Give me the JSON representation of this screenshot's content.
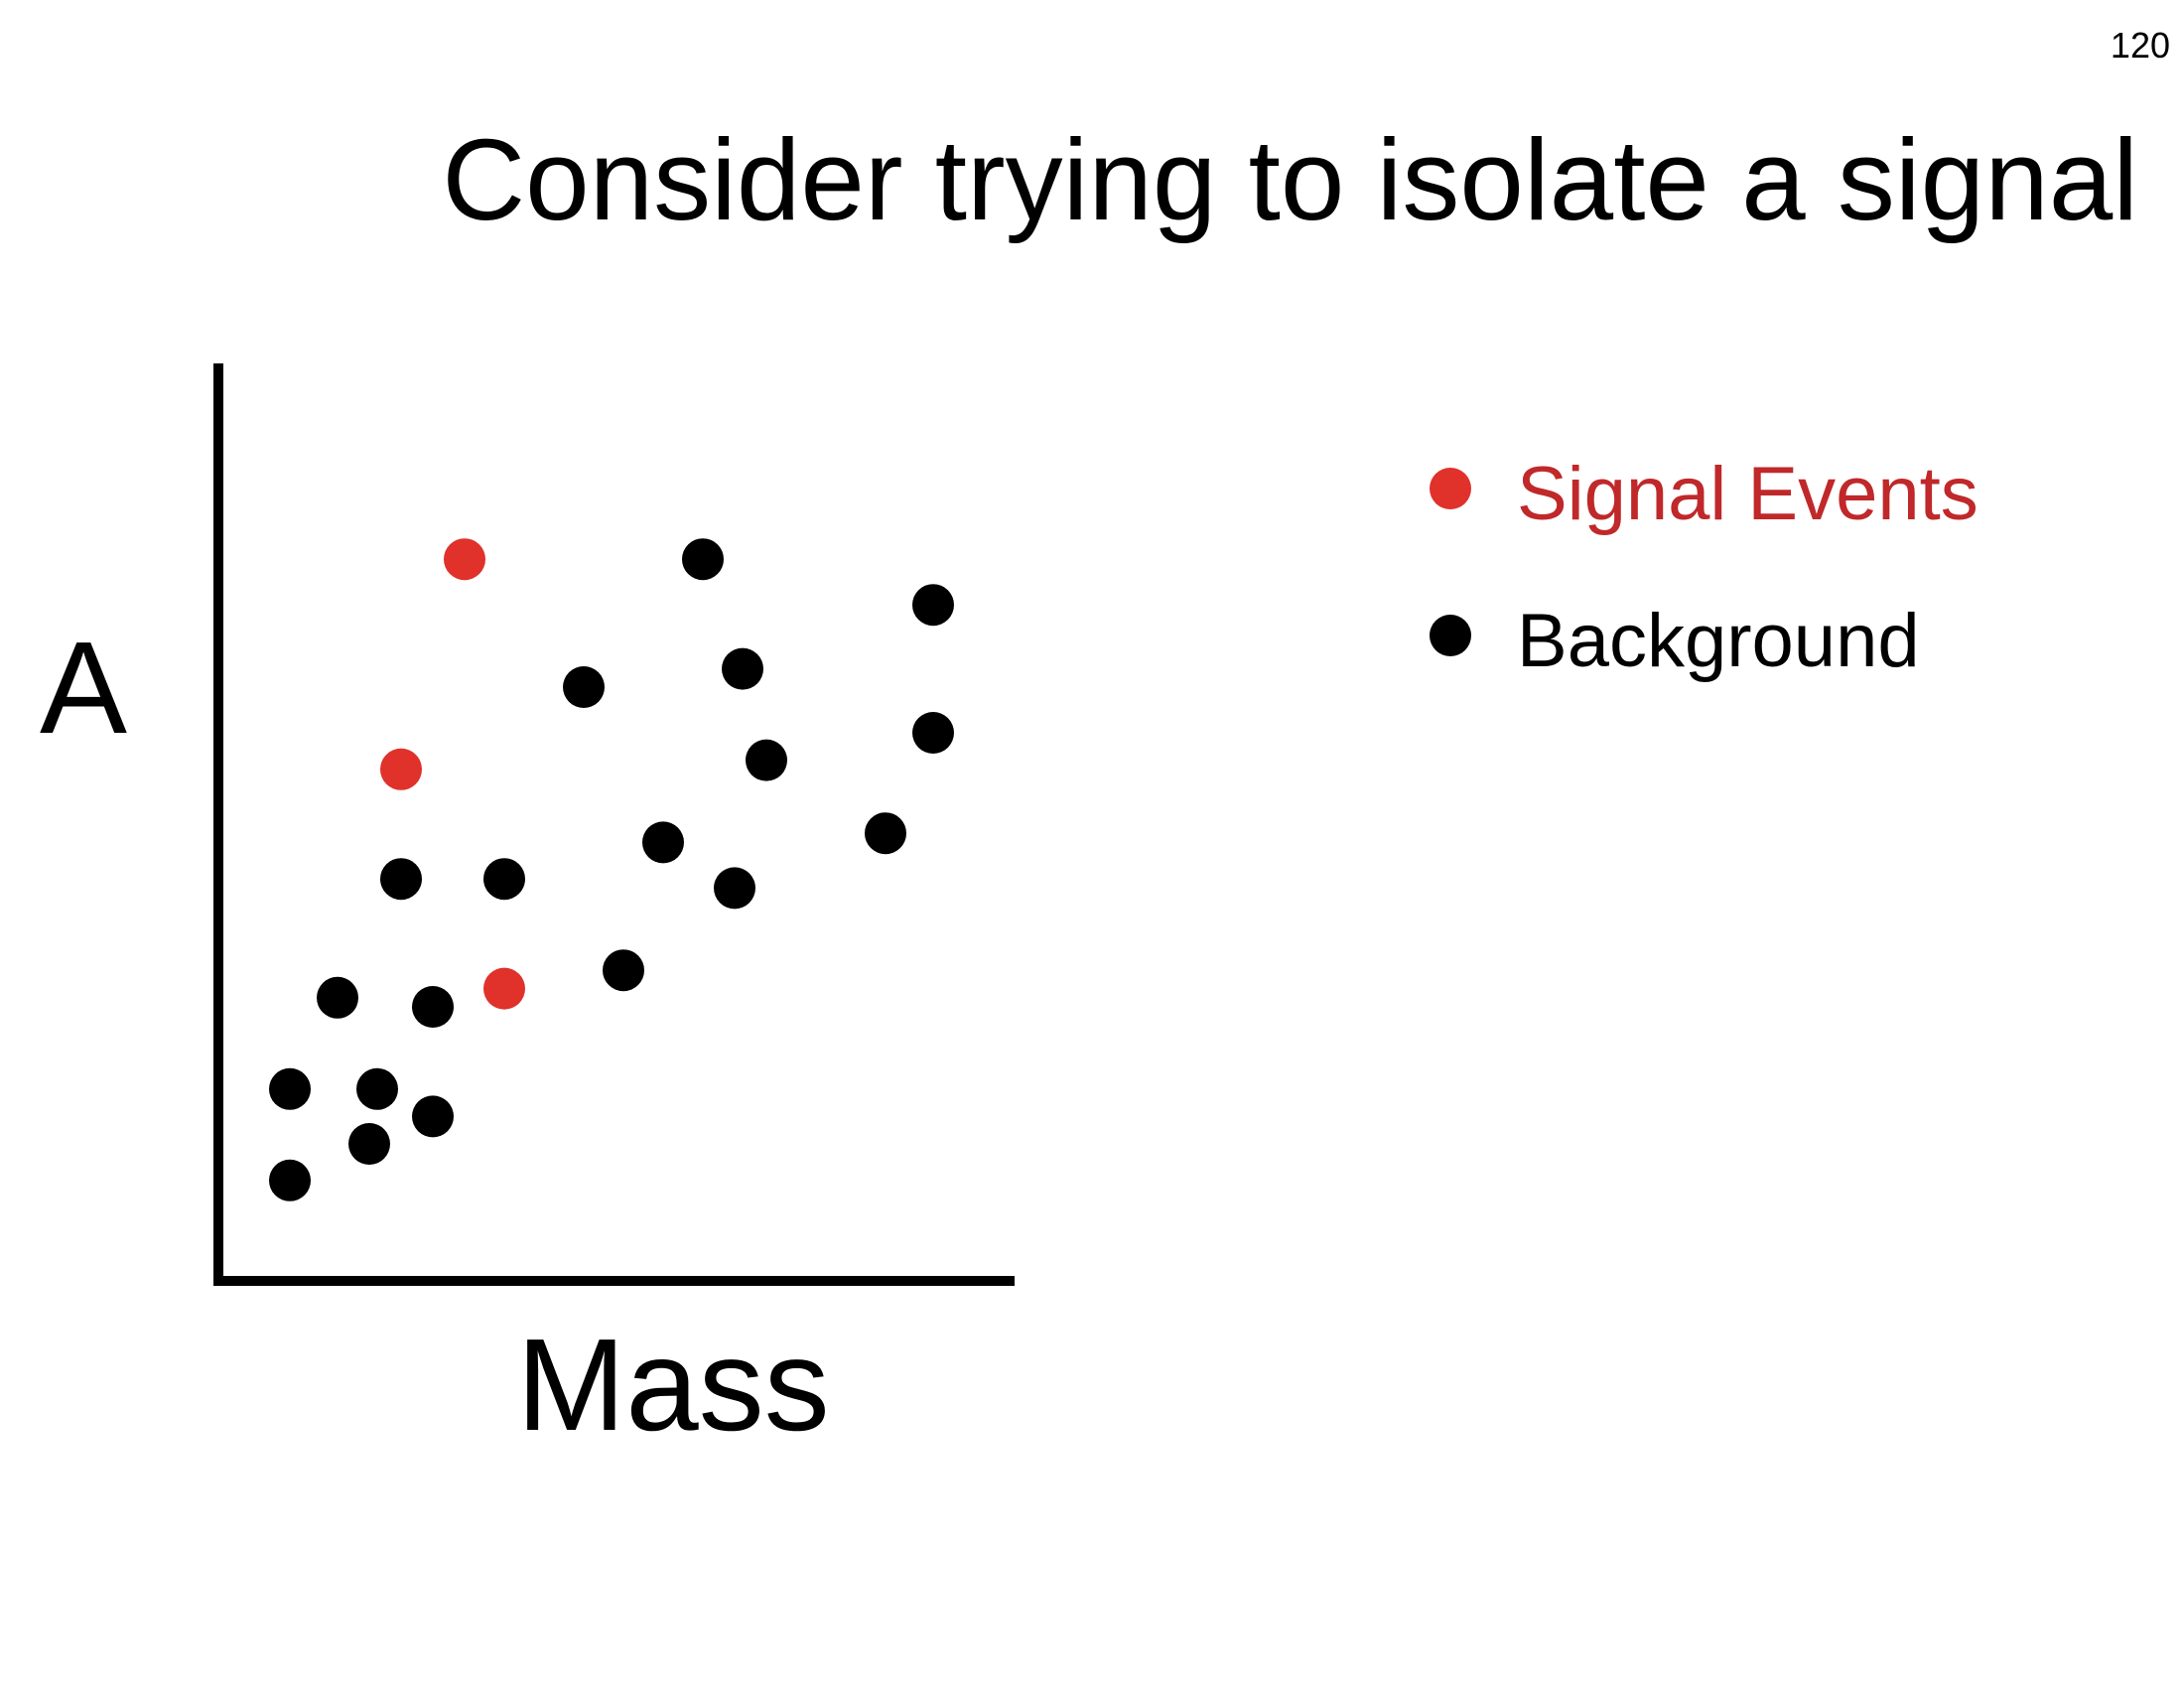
{
  "slide": {
    "number": "120",
    "title": "Consider trying to isolate a signal"
  },
  "colors": {
    "signal": "#e0312b",
    "background": "#000000",
    "signal_text": "#c0282a",
    "axis": "#000000"
  },
  "chart_data": {
    "type": "scatter",
    "xlabel": "Mass",
    "ylabel": "A",
    "xlim": [
      0,
      100
    ],
    "ylim": [
      0,
      100
    ],
    "grid": false,
    "ticks": false,
    "legend_placement": "right",
    "legend": [
      {
        "name": "Signal Events",
        "color": "#e0312b",
        "text_color": "#c0282a"
      },
      {
        "name": "Background",
        "color": "#000000",
        "text_color": "#000000"
      }
    ],
    "series": [
      {
        "name": "Signal Events",
        "color": "#e0312b",
        "points": [
          {
            "x": 31,
            "y": 79
          },
          {
            "x": 23,
            "y": 56
          },
          {
            "x": 36,
            "y": 32
          }
        ]
      },
      {
        "name": "Background",
        "color": "#000000",
        "points": [
          {
            "x": 61,
            "y": 79
          },
          {
            "x": 90,
            "y": 74
          },
          {
            "x": 66,
            "y": 67
          },
          {
            "x": 46,
            "y": 65
          },
          {
            "x": 90,
            "y": 60
          },
          {
            "x": 69,
            "y": 57
          },
          {
            "x": 56,
            "y": 48
          },
          {
            "x": 84,
            "y": 49
          },
          {
            "x": 23,
            "y": 44
          },
          {
            "x": 36,
            "y": 44
          },
          {
            "x": 65,
            "y": 43
          },
          {
            "x": 51,
            "y": 34
          },
          {
            "x": 15,
            "y": 31
          },
          {
            "x": 27,
            "y": 30
          },
          {
            "x": 9,
            "y": 21
          },
          {
            "x": 20,
            "y": 21
          },
          {
            "x": 27,
            "y": 18
          },
          {
            "x": 19,
            "y": 15
          },
          {
            "x": 9,
            "y": 11
          }
        ]
      }
    ]
  }
}
